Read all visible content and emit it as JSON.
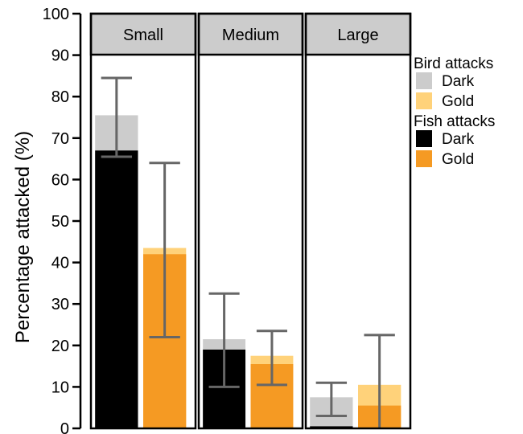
{
  "chart_data": {
    "type": "bar",
    "ylabel": "Percentage attacked (%)",
    "ylim": [
      0,
      100
    ],
    "yticks": [
      "0",
      "10",
      "20",
      "30",
      "40",
      "50",
      "60",
      "70",
      "80",
      "90",
      "100"
    ],
    "panels": [
      {
        "label": "Small",
        "bars": [
          {
            "color": "Dark",
            "fish": 67,
            "total": 75.5,
            "err_low": 65.5,
            "err_high": 84.5
          },
          {
            "color": "Gold",
            "fish": 42,
            "total": 43.5,
            "err_low": 22,
            "err_high": 64
          }
        ]
      },
      {
        "label": "Medium",
        "bars": [
          {
            "color": "Dark",
            "fish": 19,
            "total": 21.5,
            "err_low": 10,
            "err_high": 32.5
          },
          {
            "color": "Gold",
            "fish": 15.5,
            "total": 17.5,
            "err_low": 10.5,
            "err_high": 23.5
          }
        ]
      },
      {
        "label": "Large",
        "bars": [
          {
            "color": "Dark",
            "fish": 0.5,
            "total": 7.5,
            "err_low": 3,
            "err_high": 11
          },
          {
            "color": "Gold",
            "fish": 5.5,
            "total": 10.5,
            "err_low": 0,
            "err_high": 22.5
          }
        ]
      }
    ],
    "legend": {
      "position": "right",
      "groups": [
        {
          "title": "Bird attacks",
          "items": [
            {
              "label": "Dark",
              "color": "#cccccc"
            },
            {
              "label": "Gold",
              "color": "#ffd27a"
            }
          ]
        },
        {
          "title": "Fish attacks",
          "items": [
            {
              "label": "Dark",
              "color": "#000000"
            },
            {
              "label": "Gold",
              "color": "#f59a23"
            }
          ]
        }
      ]
    },
    "colors": {
      "bird_dark": "#cccccc",
      "bird_gold": "#ffd27a",
      "fish_dark": "#000000",
      "fish_gold": "#f59a23",
      "error_bar": "#666666",
      "strip": "#cccccc"
    }
  }
}
